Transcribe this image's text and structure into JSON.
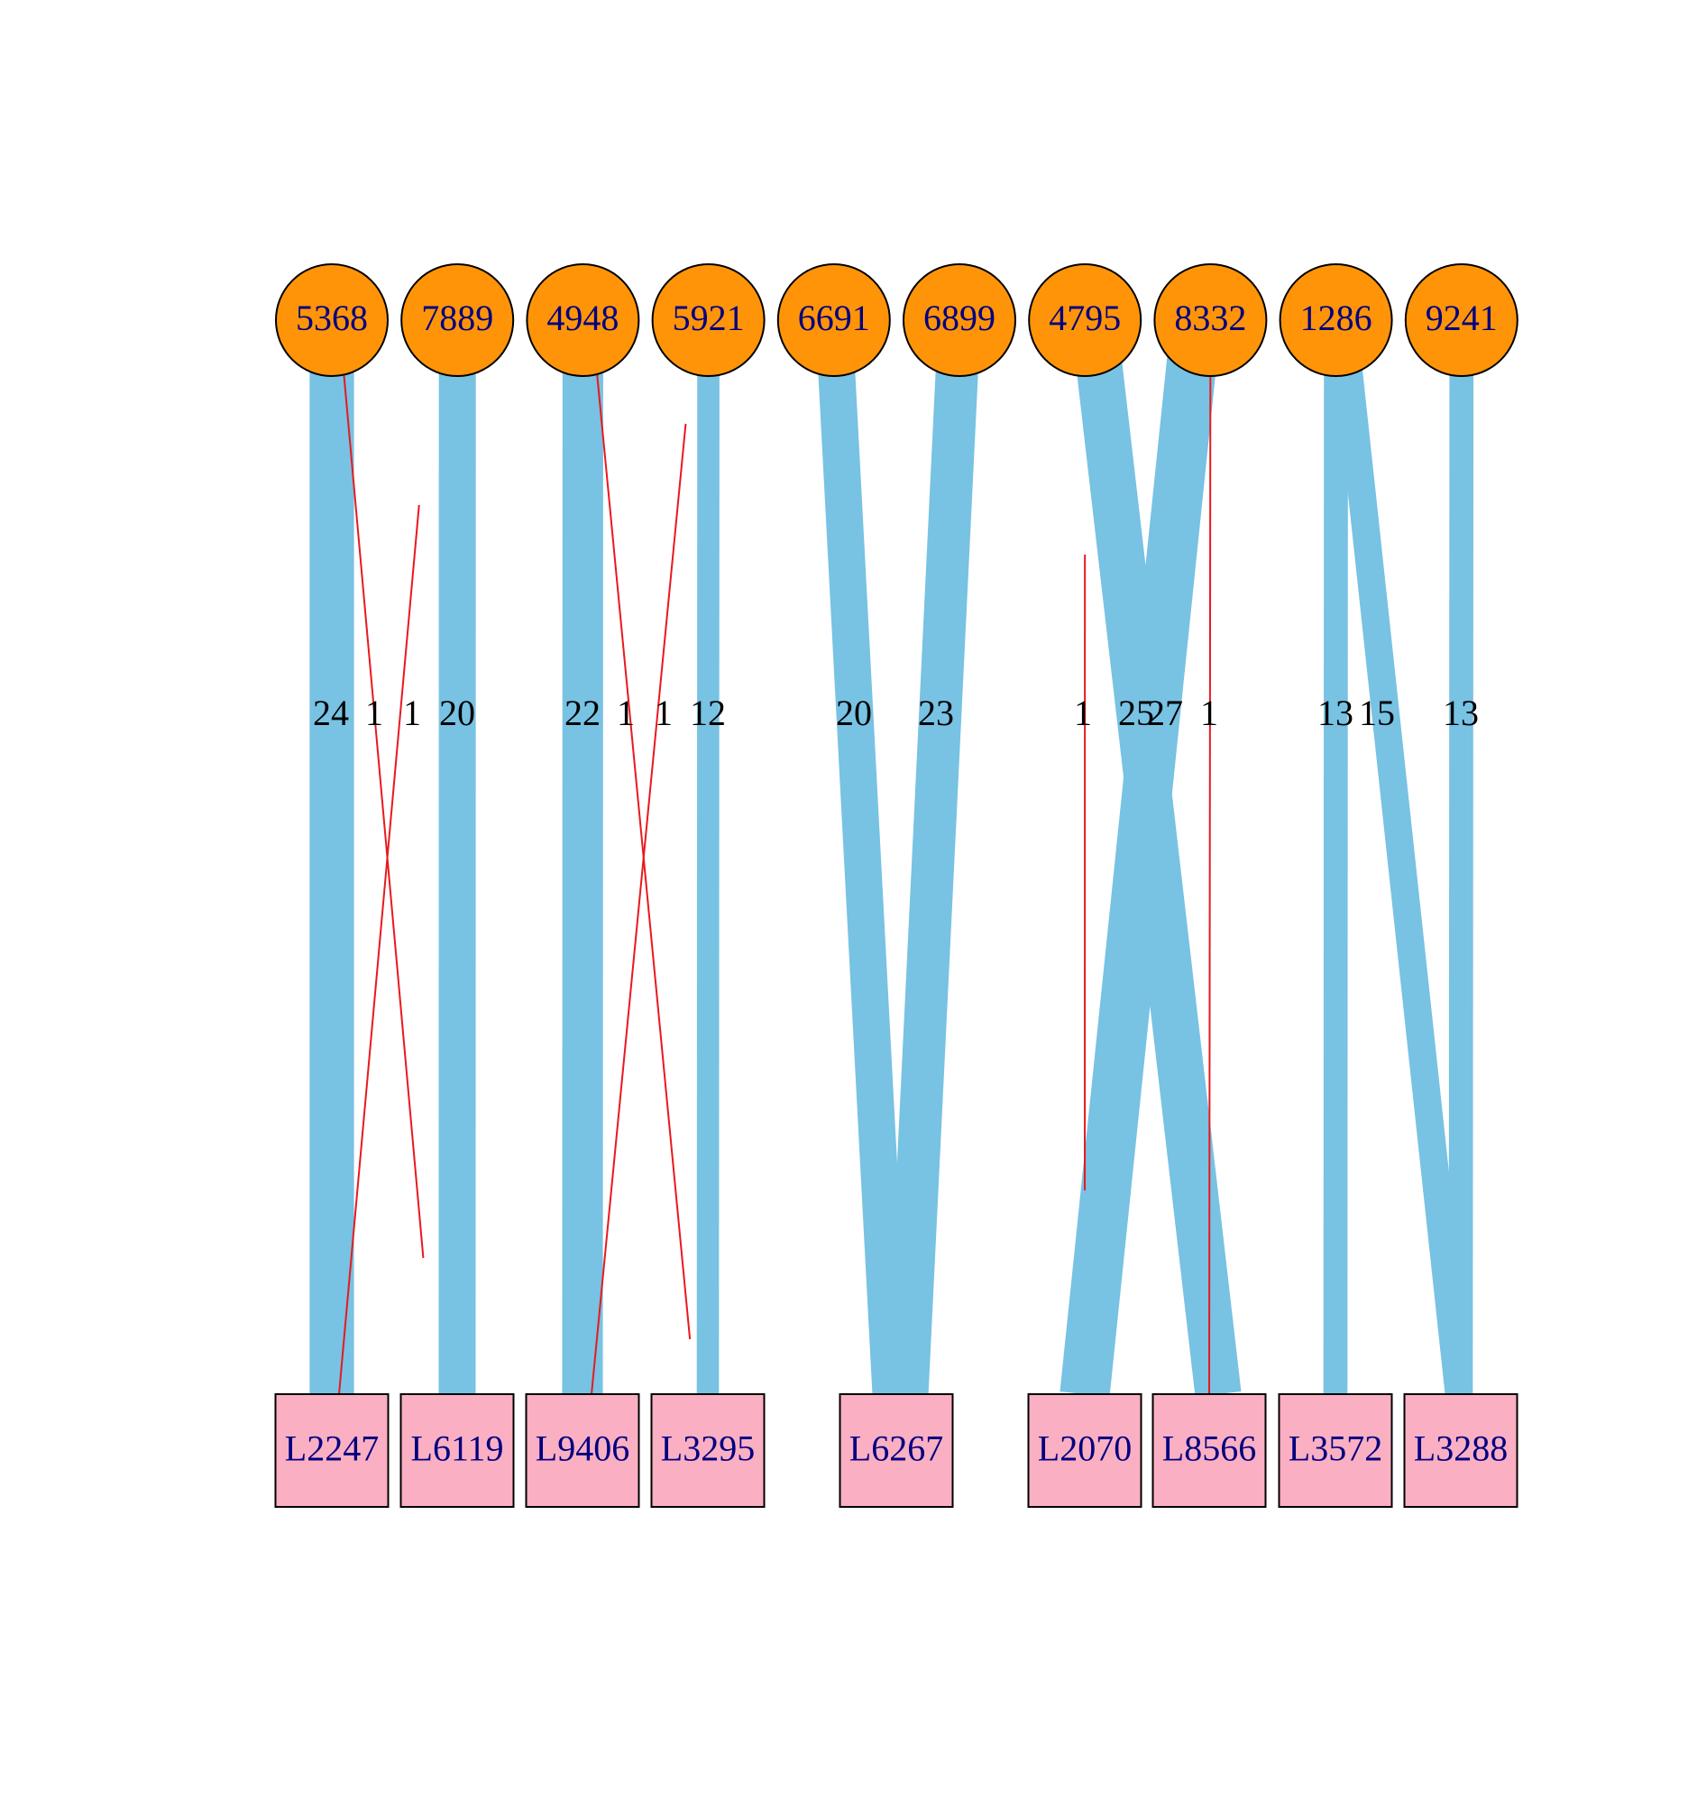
{
  "colors": {
    "background": "#ffffff",
    "circle_fill": "#ff9408",
    "square_fill": "#fbafc3",
    "node_stroke": "#000000",
    "node_label": "#000080",
    "edge_blue": "#78c2e3",
    "edge_red": "#e8191e"
  },
  "top_nodes": [
    {
      "id": "5368",
      "label": "5368",
      "shape": "circle"
    },
    {
      "id": "7889",
      "label": "7889",
      "shape": "circle"
    },
    {
      "id": "4948",
      "label": "4948",
      "shape": "circle"
    },
    {
      "id": "5921",
      "label": "5921",
      "shape": "circle"
    },
    {
      "id": "6691",
      "label": "6691",
      "shape": "circle"
    },
    {
      "id": "6899",
      "label": "6899",
      "shape": "circle"
    },
    {
      "id": "4795",
      "label": "4795",
      "shape": "circle"
    },
    {
      "id": "8332",
      "label": "8332",
      "shape": "circle"
    },
    {
      "id": "1286",
      "label": "1286",
      "shape": "circle"
    },
    {
      "id": "9241",
      "label": "9241",
      "shape": "circle"
    }
  ],
  "bottom_nodes": [
    {
      "id": "L2247",
      "label": "L2247",
      "shape": "square"
    },
    {
      "id": "L6119",
      "label": "L6119",
      "shape": "square"
    },
    {
      "id": "L9406",
      "label": "L9406",
      "shape": "square"
    },
    {
      "id": "L3295",
      "label": "L3295",
      "shape": "square"
    },
    {
      "id": "L6267",
      "label": "L6267",
      "shape": "square"
    },
    {
      "id": "L2070",
      "label": "L2070",
      "shape": "square"
    },
    {
      "id": "L8566",
      "label": "L8566",
      "shape": "square"
    },
    {
      "id": "L3572",
      "label": "L3572",
      "shape": "square"
    },
    {
      "id": "L3288",
      "label": "L3288",
      "shape": "square"
    }
  ],
  "edges": [
    {
      "from": "5368",
      "to": "L2247",
      "weight": 24,
      "label": "24",
      "color": "blue"
    },
    {
      "from": "5368",
      "to": "L6119",
      "weight": 1,
      "label": "1",
      "color": "red"
    },
    {
      "from": "7889",
      "to": "L2247",
      "weight": 1,
      "label": "1",
      "color": "red"
    },
    {
      "from": "7889",
      "to": "L6119",
      "weight": 20,
      "label": "20",
      "color": "blue"
    },
    {
      "from": "4948",
      "to": "L9406",
      "weight": 22,
      "label": "22",
      "color": "blue"
    },
    {
      "from": "4948",
      "to": "L3295",
      "weight": 1,
      "label": "1",
      "color": "red"
    },
    {
      "from": "5921",
      "to": "L9406",
      "weight": 1,
      "label": "1",
      "color": "red"
    },
    {
      "from": "5921",
      "to": "L3295",
      "weight": 12,
      "label": "12",
      "color": "blue"
    },
    {
      "from": "6691",
      "to": "L6267",
      "weight": 20,
      "label": "20",
      "color": "blue"
    },
    {
      "from": "6899",
      "to": "L6267",
      "weight": 23,
      "label": "23",
      "color": "blue"
    },
    {
      "from": "4795",
      "to": "L2070",
      "weight": 1,
      "label": "1",
      "color": "red"
    },
    {
      "from": "4795",
      "to": "L8566",
      "weight": 25,
      "label": "25",
      "color": "blue"
    },
    {
      "from": "8332",
      "to": "L2070",
      "weight": 27,
      "label": "27",
      "color": "blue"
    },
    {
      "from": "8332",
      "to": "L8566",
      "weight": 1,
      "label": "1",
      "color": "red"
    },
    {
      "from": "1286",
      "to": "L3572",
      "weight": 13,
      "label": "13",
      "color": "blue"
    },
    {
      "from": "1286",
      "to": "L3288",
      "weight": 15,
      "label": "15",
      "color": "blue"
    },
    {
      "from": "9241",
      "to": "L3288",
      "weight": 13,
      "label": "13",
      "color": "blue"
    }
  ]
}
